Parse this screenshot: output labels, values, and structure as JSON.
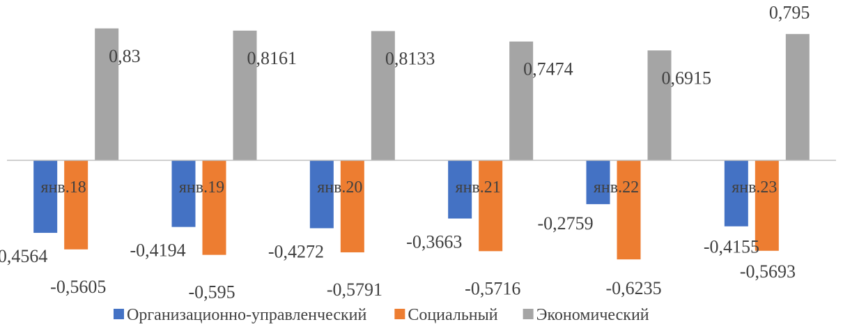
{
  "chart_data": {
    "type": "bar",
    "title": "",
    "xlabel": "",
    "ylabel": "",
    "categories": [
      "янв.18",
      "янв.19",
      "янв.20",
      "янв.21",
      "янв.22",
      "янв.23"
    ],
    "series": [
      {
        "name": "Организационно-управленческий",
        "color": "#4472C4",
        "values": [
          -0.4564,
          -0.4194,
          -0.4272,
          -0.3663,
          -0.2759,
          -0.4155
        ],
        "labels": [
          "-0,4564",
          "-0,4194",
          "-0,4272",
          "-0,3663",
          "-0,2759",
          "-0,4155"
        ]
      },
      {
        "name": "Социальный",
        "color": "#ED7D31",
        "values": [
          -0.5605,
          -0.595,
          -0.5791,
          -0.5716,
          -0.6235,
          -0.5693
        ],
        "labels": [
          "-0,5605",
          "-0,595",
          "-0,5791",
          "-0,5716",
          "-0,6235",
          "-0,5693"
        ]
      },
      {
        "name": "Экономический",
        "color": "#A5A5A5",
        "values": [
          0.83,
          0.8161,
          0.8133,
          0.7474,
          0.6915,
          0.795
        ],
        "labels": [
          "0,83",
          "0,8161",
          "0,8133",
          "0,7474",
          "0,6915",
          "0,795"
        ]
      }
    ],
    "grid": false,
    "legend": "bottom"
  }
}
